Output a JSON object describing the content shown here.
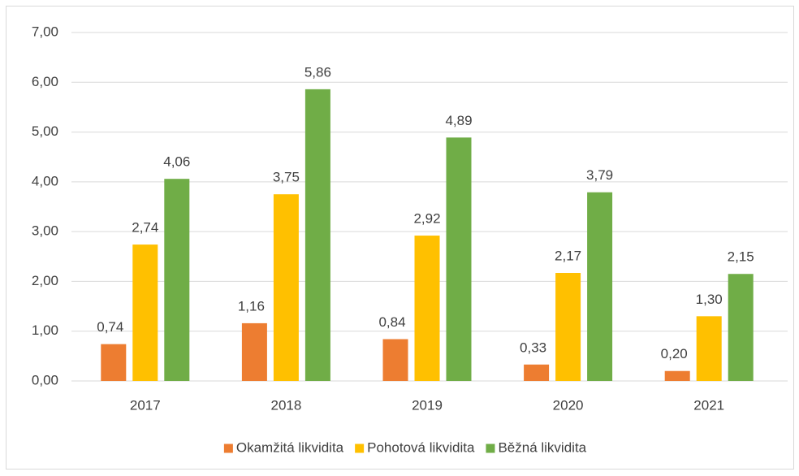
{
  "chart_data": {
    "type": "bar",
    "categories": [
      "2017",
      "2018",
      "2019",
      "2020",
      "2021"
    ],
    "series": [
      {
        "name": "Okamžitá likvidita",
        "color": "#ed7d31",
        "values": [
          0.74,
          1.16,
          0.84,
          0.33,
          0.2
        ],
        "value_labels": [
          "0,74",
          "1,16",
          "0,84",
          "0,33",
          "0,20"
        ]
      },
      {
        "name": "Pohotová likvidita",
        "color": "#ffc000",
        "values": [
          2.74,
          3.75,
          2.92,
          2.17,
          1.3
        ],
        "value_labels": [
          "2,74",
          "3,75",
          "2,92",
          "2,17",
          "1,30"
        ]
      },
      {
        "name": "Běžná likvidita",
        "color": "#70ad47",
        "values": [
          4.06,
          5.86,
          4.89,
          3.79,
          2.15
        ],
        "value_labels": [
          "4,06",
          "5,86",
          "4,89",
          "3,79",
          "2,15"
        ]
      }
    ],
    "ylim": [
      0,
      7
    ],
    "yticks": [
      {
        "value": 0,
        "label": "0,00"
      },
      {
        "value": 1,
        "label": "1,00"
      },
      {
        "value": 2,
        "label": "2,00"
      },
      {
        "value": 3,
        "label": "3,00"
      },
      {
        "value": 4,
        "label": "4,00"
      },
      {
        "value": 5,
        "label": "5,00"
      },
      {
        "value": 6,
        "label": "6,00"
      },
      {
        "value": 7,
        "label": "7,00"
      }
    ],
    "grid": true,
    "legend": "bottom"
  }
}
